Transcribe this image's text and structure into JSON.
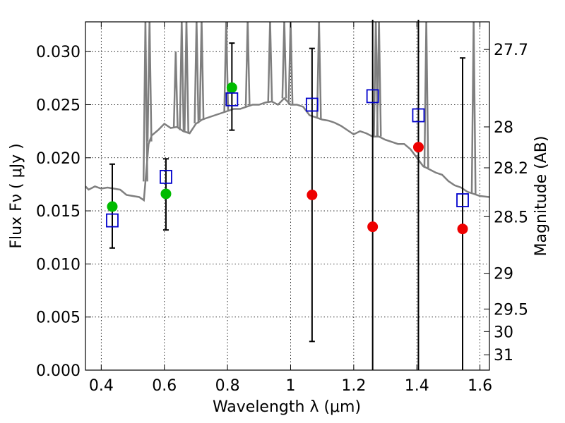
{
  "chart_data": {
    "type": "scatter",
    "title": "",
    "xlabel": "Wavelength  λ (μm)",
    "ylabel": "Flux  Fν  ( μJy )",
    "y2label": "Magnitude (AB)",
    "xlim": [
      0.35,
      1.63
    ],
    "ylim": [
      0.0,
      0.0328
    ],
    "grid": true,
    "xticks": [
      0.4,
      0.6,
      0.8,
      1.0,
      1.2,
      1.4,
      1.6
    ],
    "xtick_labels": [
      "0.4",
      "0.6",
      "0.8",
      "1",
      "1.2",
      "1.4",
      "1.6"
    ],
    "yticks": [
      0.0,
      0.005,
      0.01,
      0.015,
      0.02,
      0.025,
      0.03
    ],
    "ytick_labels": [
      "0.000",
      "0.005",
      "0.010",
      "0.015",
      "0.020",
      "0.025",
      "0.030"
    ],
    "magnitude_ticks": [
      "27.7",
      "28",
      "28.2",
      "28.5",
      "29",
      "29.5",
      "30",
      "31"
    ],
    "colors": {
      "spectrum": "#7f7f7f",
      "detected": "#00bb00",
      "upper": "#ee0000",
      "model": "#0000cc",
      "errorbar": "#000000"
    },
    "series": [
      {
        "name": "Detections",
        "marker": "circle",
        "x": [
          0.435,
          0.605,
          0.814
        ],
        "y": [
          0.0154,
          0.0166,
          0.0266
        ]
      },
      {
        "name": "Non-detections",
        "marker": "circle",
        "x": [
          1.068,
          1.26,
          1.405,
          1.545
        ],
        "y": [
          0.0165,
          0.0135,
          0.021,
          0.0133
        ]
      },
      {
        "name": "Model photometry",
        "marker": "square-open",
        "x": [
          0.435,
          0.605,
          0.814,
          1.068,
          1.26,
          1.405,
          1.545
        ],
        "y": [
          0.0141,
          0.0182,
          0.0255,
          0.025,
          0.0258,
          0.024,
          0.016
        ]
      },
      {
        "name": "Error bars",
        "x": [
          0.435,
          0.605,
          0.814,
          1.068,
          1.26,
          1.405,
          1.545
        ],
        "low": [
          0.0115,
          0.0132,
          0.0226,
          0.0027,
          0.0,
          0.0,
          0.0
        ],
        "high": [
          0.0194,
          0.0199,
          0.0308,
          0.0303,
          0.033,
          0.033,
          0.0294
        ]
      },
      {
        "name": "Template spectrum",
        "type": "line",
        "x": [
          0.35,
          0.36,
          0.38,
          0.4,
          0.42,
          0.44,
          0.46,
          0.48,
          0.5,
          0.52,
          0.535,
          0.55,
          0.56,
          0.58,
          0.6,
          0.62,
          0.64,
          0.66,
          0.68,
          0.7,
          0.72,
          0.74,
          0.76,
          0.78,
          0.8,
          0.82,
          0.84,
          0.86,
          0.88,
          0.9,
          0.92,
          0.94,
          0.96,
          0.98,
          1.0,
          1.02,
          1.04,
          1.06,
          1.08,
          1.1,
          1.12,
          1.14,
          1.16,
          1.18,
          1.2,
          1.22,
          1.24,
          1.26,
          1.28,
          1.3,
          1.32,
          1.34,
          1.36,
          1.38,
          1.4,
          1.42,
          1.44,
          1.46,
          1.48,
          1.5,
          1.52,
          1.54,
          1.56,
          1.58,
          1.6,
          1.63
        ],
        "y": [
          0.0173,
          0.017,
          0.0173,
          0.0171,
          0.0172,
          0.0171,
          0.017,
          0.0165,
          0.0164,
          0.0163,
          0.016,
          0.0213,
          0.0221,
          0.0226,
          0.0232,
          0.0228,
          0.0229,
          0.0225,
          0.0223,
          0.0232,
          0.0236,
          0.0238,
          0.024,
          0.0242,
          0.0244,
          0.0246,
          0.0246,
          0.0248,
          0.025,
          0.025,
          0.0252,
          0.0253,
          0.025,
          0.0256,
          0.025,
          0.025,
          0.0248,
          0.024,
          0.0238,
          0.0236,
          0.0235,
          0.0233,
          0.023,
          0.0226,
          0.0222,
          0.0225,
          0.0223,
          0.022,
          0.022,
          0.0217,
          0.0215,
          0.0213,
          0.0213,
          0.0208,
          0.02,
          0.0192,
          0.0189,
          0.0186,
          0.0184,
          0.0178,
          0.0174,
          0.0172,
          0.0168,
          0.0166,
          0.0164,
          0.0163
        ]
      },
      {
        "name": "Emission lines",
        "type": "spikes",
        "x": [
          0.54,
          0.553,
          0.636,
          0.655,
          0.67,
          0.702,
          0.718,
          0.796,
          0.864,
          0.935,
          0.98,
          1.0,
          1.09,
          1.27,
          1.28,
          1.43,
          1.58
        ],
        "y": [
          0.033,
          0.033,
          0.03,
          0.033,
          0.033,
          0.033,
          0.033,
          0.033,
          0.033,
          0.033,
          0.033,
          0.033,
          0.033,
          0.033,
          0.033,
          0.033,
          0.033
        ]
      }
    ]
  }
}
